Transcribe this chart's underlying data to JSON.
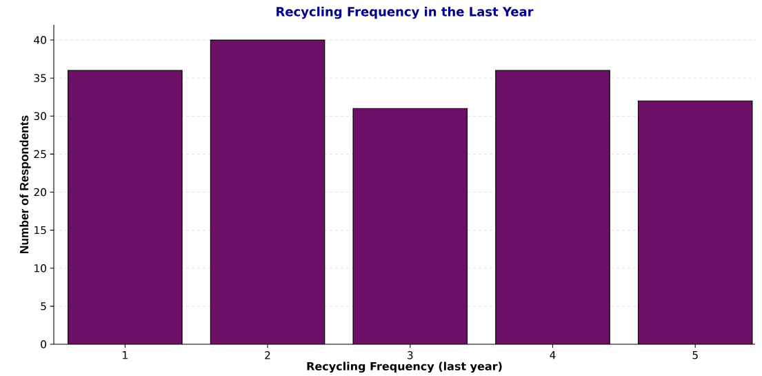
{
  "chart_data": {
    "type": "bar",
    "title": "Recycling Frequency in the Last Year",
    "xlabel": "Recycling Frequency (last year)",
    "ylabel": "Number of Respondents",
    "categories": [
      "1",
      "2",
      "3",
      "4",
      "5"
    ],
    "values": [
      36,
      40,
      31,
      36,
      32
    ],
    "color": "#6e1068",
    "ylim": [
      0,
      42
    ],
    "yticks": [
      0,
      5,
      10,
      15,
      20,
      25,
      30,
      35,
      40
    ],
    "grid": "y"
  }
}
